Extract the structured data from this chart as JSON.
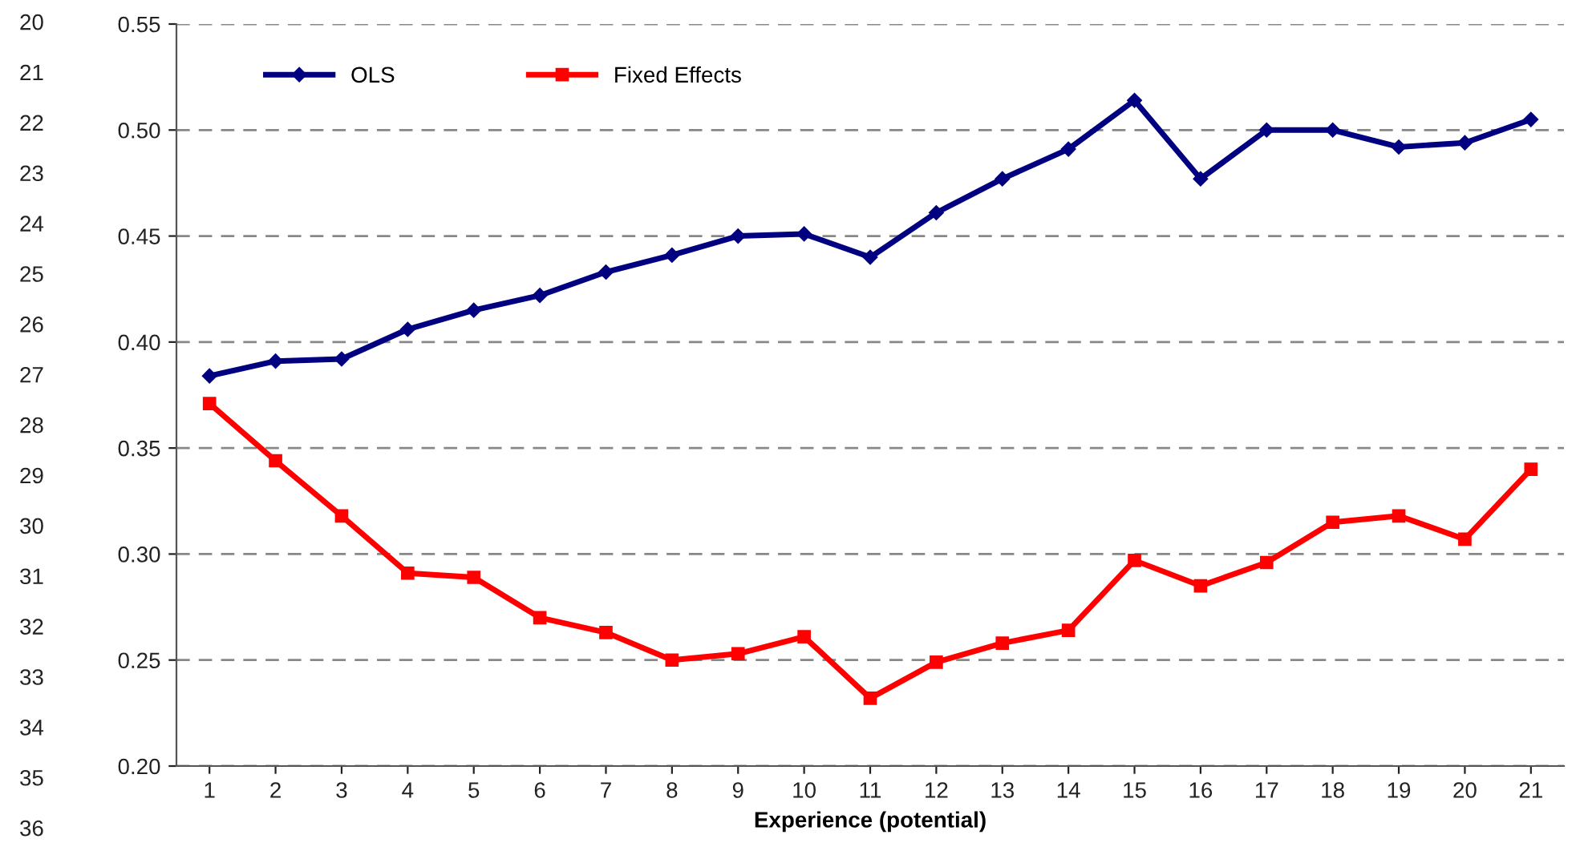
{
  "chart_data": {
    "type": "line",
    "xlabel": "Experience (potential)",
    "categories": [
      "1",
      "2",
      "3",
      "4",
      "5",
      "6",
      "7",
      "8",
      "9",
      "10",
      "11",
      "12",
      "13",
      "14",
      "15",
      "16",
      "17",
      "18",
      "19",
      "20",
      "21"
    ],
    "series": [
      {
        "name": "OLS",
        "color": "#000080",
        "marker": "diamond",
        "values": [
          0.384,
          0.391,
          0.392,
          0.406,
          0.415,
          0.422,
          0.433,
          0.441,
          0.45,
          0.451,
          0.44,
          0.461,
          0.477,
          0.491,
          0.514,
          0.477,
          0.5,
          0.5,
          0.492,
          0.494,
          0.505
        ]
      },
      {
        "name": "Fixed Effects",
        "color": "#ff0000",
        "marker": "square",
        "values": [
          0.371,
          0.344,
          0.318,
          0.291,
          0.289,
          0.27,
          0.263,
          0.25,
          0.253,
          0.261,
          0.232,
          0.249,
          0.258,
          0.264,
          0.297,
          0.285,
          0.296,
          0.315,
          0.318,
          0.307,
          0.34
        ]
      }
    ],
    "ylim": [
      0.2,
      0.55
    ],
    "yticks": [
      {
        "value": 0.2,
        "label": "0.20"
      },
      {
        "value": 0.25,
        "label": "0.25"
      },
      {
        "value": 0.3,
        "label": "0.30"
      },
      {
        "value": 0.35,
        "label": "0.35"
      },
      {
        "value": 0.4,
        "label": "0.40"
      },
      {
        "value": 0.45,
        "label": "0.45"
      },
      {
        "value": 0.5,
        "label": "0.50"
      },
      {
        "value": 0.55,
        "label": "0.55"
      }
    ],
    "grid": "y",
    "line_style": "solid",
    "legend": "top left",
    "annotations": [
      "20",
      "21",
      "22",
      "23",
      "24",
      "25",
      "26",
      "27",
      "28",
      "29",
      "30",
      "31",
      "32",
      "33",
      "34",
      "35",
      "36"
    ]
  }
}
